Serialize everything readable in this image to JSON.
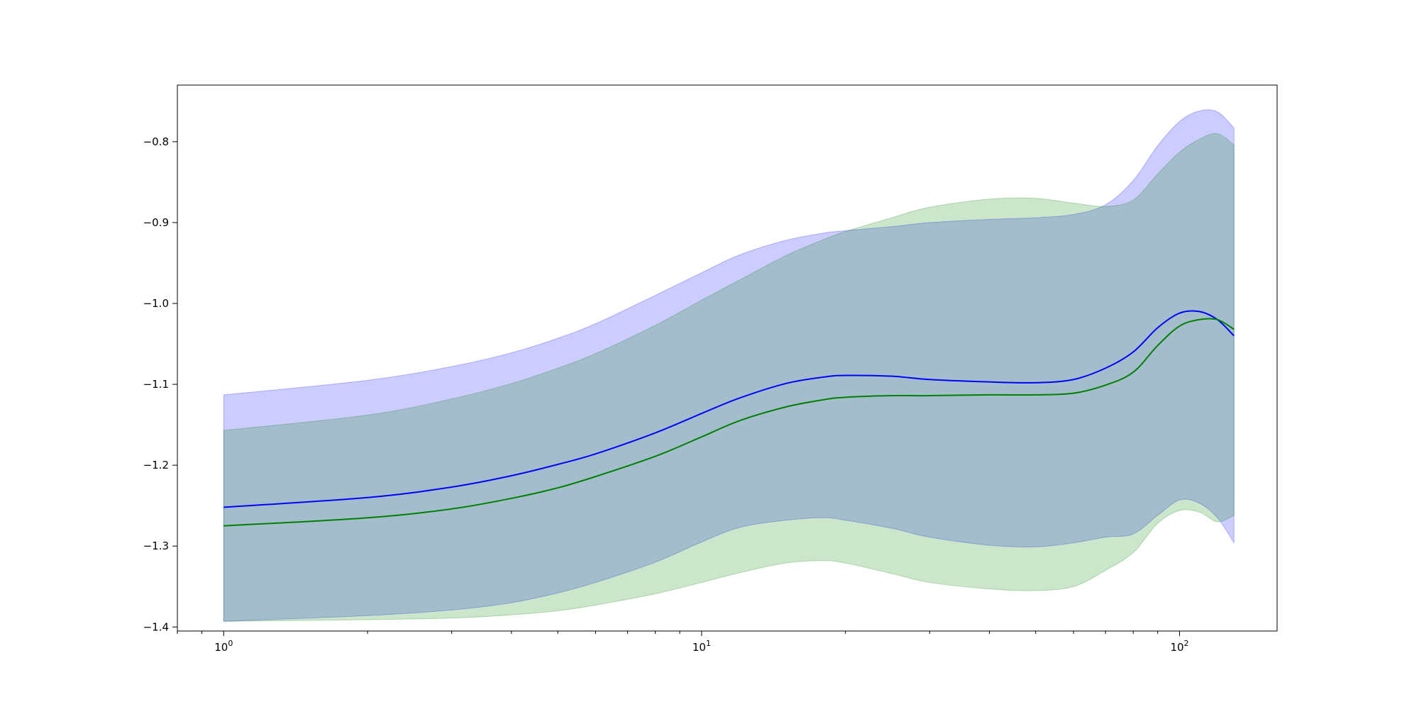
{
  "chart_data": {
    "type": "area",
    "title": "",
    "xlabel": "",
    "ylabel": "",
    "x_scale": "log",
    "xlim": [
      0.8,
      160
    ],
    "ylim": [
      -1.405,
      -0.73
    ],
    "grid": false,
    "legend": "none",
    "x_ticks": [
      {
        "value": 1,
        "base": "10",
        "exp": "0"
      },
      {
        "value": 10,
        "base": "10",
        "exp": "1"
      },
      {
        "value": 100,
        "base": "10",
        "exp": "2"
      }
    ],
    "y_ticks": [
      {
        "value": -0.8,
        "label": "−0.8"
      },
      {
        "value": -0.9,
        "label": "−0.9"
      },
      {
        "value": -1.0,
        "label": "−1.0"
      },
      {
        "value": -1.1,
        "label": "−1.1"
      },
      {
        "value": -1.2,
        "label": "−1.2"
      },
      {
        "value": -1.3,
        "label": "−1.3"
      },
      {
        "value": -1.4,
        "label": "−1.4"
      }
    ],
    "series": [
      {
        "color": "#0000ff",
        "band_color": "#0000ff",
        "band_opacity": 0.2,
        "x": [
          1,
          2,
          3,
          4,
          5,
          6,
          8,
          10,
          12,
          15,
          18,
          20,
          25,
          30,
          40,
          50,
          60,
          70,
          80,
          90,
          100,
          110,
          120,
          130
        ],
        "mean": [
          -1.252,
          -1.24,
          -1.227,
          -1.213,
          -1.199,
          -1.186,
          -1.16,
          -1.136,
          -1.117,
          -1.099,
          -1.091,
          -1.089,
          -1.09,
          -1.094,
          -1.097,
          -1.098,
          -1.094,
          -1.08,
          -1.06,
          -1.03,
          -1.012,
          -1.01,
          -1.02,
          -1.04
        ],
        "upper": [
          -1.113,
          -1.095,
          -1.078,
          -1.061,
          -1.043,
          -1.025,
          -0.99,
          -0.962,
          -0.94,
          -0.922,
          -0.913,
          -0.91,
          -0.905,
          -0.9,
          -0.896,
          -0.894,
          -0.89,
          -0.878,
          -0.848,
          -0.805,
          -0.775,
          -0.762,
          -0.763,
          -0.783
        ],
        "lower": [
          -1.393,
          -1.386,
          -1.379,
          -1.37,
          -1.358,
          -1.345,
          -1.32,
          -1.295,
          -1.277,
          -1.268,
          -1.265,
          -1.268,
          -1.278,
          -1.289,
          -1.299,
          -1.301,
          -1.296,
          -1.289,
          -1.285,
          -1.262,
          -1.243,
          -1.247,
          -1.265,
          -1.296
        ]
      },
      {
        "color": "#008000",
        "band_color": "#008000",
        "band_opacity": 0.2,
        "x": [
          1,
          2,
          3,
          4,
          5,
          6,
          8,
          10,
          12,
          15,
          18,
          20,
          25,
          30,
          40,
          50,
          60,
          70,
          80,
          90,
          100,
          110,
          120,
          130
        ],
        "mean": [
          -1.275,
          -1.265,
          -1.254,
          -1.241,
          -1.228,
          -1.214,
          -1.189,
          -1.165,
          -1.145,
          -1.128,
          -1.119,
          -1.116,
          -1.114,
          -1.114,
          -1.113,
          -1.113,
          -1.111,
          -1.101,
          -1.085,
          -1.052,
          -1.028,
          -1.02,
          -1.02,
          -1.032
        ],
        "upper": [
          -1.157,
          -1.138,
          -1.118,
          -1.099,
          -1.08,
          -1.062,
          -1.027,
          -0.996,
          -0.971,
          -0.941,
          -0.921,
          -0.911,
          -0.894,
          -0.881,
          -0.871,
          -0.87,
          -0.876,
          -0.88,
          -0.872,
          -0.84,
          -0.813,
          -0.797,
          -0.79,
          -0.804
        ],
        "lower": [
          -1.393,
          -1.391,
          -1.389,
          -1.385,
          -1.38,
          -1.373,
          -1.359,
          -1.345,
          -1.333,
          -1.321,
          -1.318,
          -1.321,
          -1.334,
          -1.345,
          -1.353,
          -1.355,
          -1.35,
          -1.33,
          -1.308,
          -1.272,
          -1.256,
          -1.258,
          -1.27,
          -1.262
        ]
      }
    ]
  }
}
